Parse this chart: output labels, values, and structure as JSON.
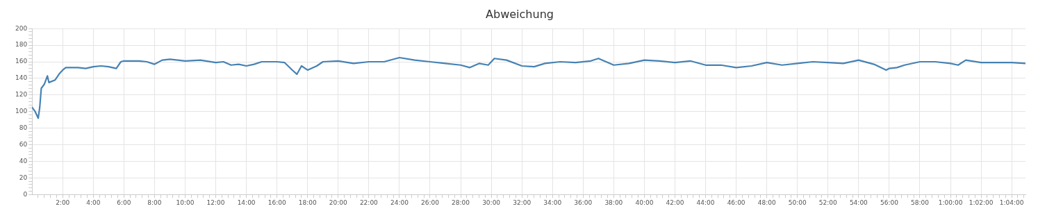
{
  "chart_data": {
    "type": "line",
    "title": "Abweichung",
    "grid": true,
    "legend": false,
    "marker": "none",
    "line_style": "solid",
    "xlim": [
      0,
      64.9
    ],
    "ylim": [
      0,
      200
    ],
    "xticks": [
      {
        "value": 0.4,
        "label": null
      },
      {
        "value": 0.8,
        "label": null
      },
      {
        "value": 1.2,
        "label": null
      },
      {
        "value": 1.6,
        "label": null
      },
      {
        "value": 2,
        "label": "2:00"
      },
      {
        "value": 2.4,
        "label": null
      },
      {
        "value": 2.8,
        "label": null
      },
      {
        "value": 3.2,
        "label": null
      },
      {
        "value": 3.6,
        "label": null
      },
      {
        "value": 4,
        "label": "4:00"
      },
      {
        "value": 4.4,
        "label": null
      },
      {
        "value": 4.8,
        "label": null
      },
      {
        "value": 5.2,
        "label": null
      },
      {
        "value": 5.6,
        "label": null
      },
      {
        "value": 6,
        "label": "6:00"
      },
      {
        "value": 6.4,
        "label": null
      },
      {
        "value": 6.8,
        "label": null
      },
      {
        "value": 7.2,
        "label": null
      },
      {
        "value": 7.6,
        "label": null
      },
      {
        "value": 8,
        "label": "8:00"
      },
      {
        "value": 8.4,
        "label": null
      },
      {
        "value": 8.8,
        "label": null
      },
      {
        "value": 9.2,
        "label": null
      },
      {
        "value": 9.6,
        "label": null
      },
      {
        "value": 10,
        "label": "10:00"
      },
      {
        "value": 10.4,
        "label": null
      },
      {
        "value": 10.8,
        "label": null
      },
      {
        "value": 11.2,
        "label": null
      },
      {
        "value": 11.6,
        "label": null
      },
      {
        "value": 12,
        "label": "12:00"
      },
      {
        "value": 12.4,
        "label": null
      },
      {
        "value": 12.8,
        "label": null
      },
      {
        "value": 13.2,
        "label": null
      },
      {
        "value": 13.6,
        "label": null
      },
      {
        "value": 14,
        "label": "14:00"
      },
      {
        "value": 14.4,
        "label": null
      },
      {
        "value": 14.8,
        "label": null
      },
      {
        "value": 15.2,
        "label": null
      },
      {
        "value": 15.6,
        "label": null
      },
      {
        "value": 16,
        "label": "16:00"
      },
      {
        "value": 16.4,
        "label": null
      },
      {
        "value": 16.8,
        "label": null
      },
      {
        "value": 17.2,
        "label": null
      },
      {
        "value": 17.6,
        "label": null
      },
      {
        "value": 18,
        "label": "18:00"
      },
      {
        "value": 18.4,
        "label": null
      },
      {
        "value": 18.8,
        "label": null
      },
      {
        "value": 19.2,
        "label": null
      },
      {
        "value": 19.6,
        "label": null
      },
      {
        "value": 20,
        "label": "20:00"
      },
      {
        "value": 20.4,
        "label": null
      },
      {
        "value": 20.8,
        "label": null
      },
      {
        "value": 21.2,
        "label": null
      },
      {
        "value": 21.6,
        "label": null
      },
      {
        "value": 22,
        "label": "22:00"
      },
      {
        "value": 22.4,
        "label": null
      },
      {
        "value": 22.8,
        "label": null
      },
      {
        "value": 23.2,
        "label": null
      },
      {
        "value": 23.6,
        "label": null
      },
      {
        "value": 24,
        "label": "24:00"
      },
      {
        "value": 24.4,
        "label": null
      },
      {
        "value": 24.8,
        "label": null
      },
      {
        "value": 25.2,
        "label": null
      },
      {
        "value": 25.6,
        "label": null
      },
      {
        "value": 26,
        "label": "26:00"
      },
      {
        "value": 26.4,
        "label": null
      },
      {
        "value": 26.8,
        "label": null
      },
      {
        "value": 27.2,
        "label": null
      },
      {
        "value": 27.6,
        "label": null
      },
      {
        "value": 28,
        "label": "28:00"
      },
      {
        "value": 28.4,
        "label": null
      },
      {
        "value": 28.8,
        "label": null
      },
      {
        "value": 29.2,
        "label": null
      },
      {
        "value": 29.6,
        "label": null
      },
      {
        "value": 30,
        "label": "30:00"
      },
      {
        "value": 30.4,
        "label": null
      },
      {
        "value": 30.8,
        "label": null
      },
      {
        "value": 31.2,
        "label": null
      },
      {
        "value": 31.6,
        "label": null
      },
      {
        "value": 32,
        "label": "32:00"
      },
      {
        "value": 32.4,
        "label": null
      },
      {
        "value": 32.8,
        "label": null
      },
      {
        "value": 33.2,
        "label": null
      },
      {
        "value": 33.6,
        "label": null
      },
      {
        "value": 34,
        "label": "34:00"
      },
      {
        "value": 34.4,
        "label": null
      },
      {
        "value": 34.8,
        "label": null
      },
      {
        "value": 35.2,
        "label": null
      },
      {
        "value": 35.6,
        "label": null
      },
      {
        "value": 36,
        "label": "36:00"
      },
      {
        "value": 36.4,
        "label": null
      },
      {
        "value": 36.8,
        "label": null
      },
      {
        "value": 37.2,
        "label": null
      },
      {
        "value": 37.6,
        "label": null
      },
      {
        "value": 38,
        "label": "38:00"
      },
      {
        "value": 38.4,
        "label": null
      },
      {
        "value": 38.8,
        "label": null
      },
      {
        "value": 39.2,
        "label": null
      },
      {
        "value": 39.6,
        "label": null
      },
      {
        "value": 40,
        "label": "40:00"
      },
      {
        "value": 40.4,
        "label": null
      },
      {
        "value": 40.8,
        "label": null
      },
      {
        "value": 41.2,
        "label": null
      },
      {
        "value": 41.6,
        "label": null
      },
      {
        "value": 42,
        "label": "42:00"
      },
      {
        "value": 42.4,
        "label": null
      },
      {
        "value": 42.8,
        "label": null
      },
      {
        "value": 43.2,
        "label": null
      },
      {
        "value": 43.6,
        "label": null
      },
      {
        "value": 44,
        "label": "44:00"
      },
      {
        "value": 44.4,
        "label": null
      },
      {
        "value": 44.8,
        "label": null
      },
      {
        "value": 45.2,
        "label": null
      },
      {
        "value": 45.6,
        "label": null
      },
      {
        "value": 46,
        "label": "46:00"
      },
      {
        "value": 46.4,
        "label": null
      },
      {
        "value": 46.8,
        "label": null
      },
      {
        "value": 47.2,
        "label": null
      },
      {
        "value": 47.6,
        "label": null
      },
      {
        "value": 48,
        "label": "48:00"
      },
      {
        "value": 48.4,
        "label": null
      },
      {
        "value": 48.8,
        "label": null
      },
      {
        "value": 49.2,
        "label": null
      },
      {
        "value": 49.6,
        "label": null
      },
      {
        "value": 50,
        "label": "50:00"
      },
      {
        "value": 50.4,
        "label": null
      },
      {
        "value": 50.8,
        "label": null
      },
      {
        "value": 51.2,
        "label": null
      },
      {
        "value": 51.6,
        "label": null
      },
      {
        "value": 52,
        "label": "52:00"
      },
      {
        "value": 52.4,
        "label": null
      },
      {
        "value": 52.8,
        "label": null
      },
      {
        "value": 53.2,
        "label": null
      },
      {
        "value": 53.6,
        "label": null
      },
      {
        "value": 54,
        "label": "54:00"
      },
      {
        "value": 54.4,
        "label": null
      },
      {
        "value": 54.8,
        "label": null
      },
      {
        "value": 55.2,
        "label": null
      },
      {
        "value": 55.6,
        "label": null
      },
      {
        "value": 56,
        "label": "56:00"
      },
      {
        "value": 56.4,
        "label": null
      },
      {
        "value": 56.8,
        "label": null
      },
      {
        "value": 57.2,
        "label": null
      },
      {
        "value": 57.6,
        "label": null
      },
      {
        "value": 58,
        "label": "58:00"
      },
      {
        "value": 58.4,
        "label": null
      },
      {
        "value": 58.8,
        "label": null
      },
      {
        "value": 59.2,
        "label": null
      },
      {
        "value": 59.6,
        "label": null
      },
      {
        "value": 60,
        "label": "1:00:00"
      },
      {
        "value": 60.4,
        "label": null
      },
      {
        "value": 60.8,
        "label": null
      },
      {
        "value": 61.2,
        "label": null
      },
      {
        "value": 61.6,
        "label": null
      },
      {
        "value": 62,
        "label": "1:02:00"
      },
      {
        "value": 62.4,
        "label": null
      },
      {
        "value": 62.8,
        "label": null
      },
      {
        "value": 63.2,
        "label": null
      },
      {
        "value": 63.6,
        "label": null
      },
      {
        "value": 64,
        "label": "1:04:00"
      },
      {
        "value": 64.4,
        "label": null
      },
      {
        "value": 64.8,
        "label": null
      }
    ],
    "yticks": [
      0,
      {
        "value": 4,
        "label": null
      },
      {
        "value": 8,
        "label": null
      },
      {
        "value": 12,
        "label": null
      },
      {
        "value": 16,
        "label": null
      },
      20,
      {
        "value": 24,
        "label": null
      },
      {
        "value": 28,
        "label": null
      },
      {
        "value": 32,
        "label": null
      },
      {
        "value": 36,
        "label": null
      },
      40,
      {
        "value": 44,
        "label": null
      },
      {
        "value": 48,
        "label": null
      },
      {
        "value": 52,
        "label": null
      },
      {
        "value": 56,
        "label": null
      },
      60,
      {
        "value": 64,
        "label": null
      },
      {
        "value": 68,
        "label": null
      },
      {
        "value": 72,
        "label": null
      },
      {
        "value": 76,
        "label": null
      },
      80,
      {
        "value": 84,
        "label": null
      },
      {
        "value": 88,
        "label": null
      },
      {
        "value": 92,
        "label": null
      },
      {
        "value": 96,
        "label": null
      },
      100,
      {
        "value": 104,
        "label": null
      },
      {
        "value": 108,
        "label": null
      },
      {
        "value": 112,
        "label": null
      },
      {
        "value": 116,
        "label": null
      },
      120,
      {
        "value": 124,
        "label": null
      },
      {
        "value": 128,
        "label": null
      },
      {
        "value": 132,
        "label": null
      },
      {
        "value": 136,
        "label": null
      },
      140,
      {
        "value": 144,
        "label": null
      },
      {
        "value": 148,
        "label": null
      },
      {
        "value": 152,
        "label": null
      },
      {
        "value": 156,
        "label": null
      },
      160,
      {
        "value": 164,
        "label": null
      },
      {
        "value": 168,
        "label": null
      },
      {
        "value": 172,
        "label": null
      },
      {
        "value": 176,
        "label": null
      },
      180,
      {
        "value": 184,
        "label": null
      },
      {
        "value": 188,
        "label": null
      },
      {
        "value": 192,
        "label": null
      },
      {
        "value": 196,
        "label": null
      },
      200
    ],
    "x": [
      0,
      0.2,
      0.4,
      0.5,
      0.6,
      0.8,
      1.0,
      1.1,
      1.5,
      1.8,
      2.0,
      2.2,
      3.0,
      3.5,
      4.0,
      4.5,
      5.0,
      5.5,
      5.8,
      6.0,
      7.0,
      7.5,
      8.0,
      8.5,
      9.0,
      10,
      11,
      12,
      12.5,
      13,
      13.5,
      14,
      14.5,
      15,
      16,
      16.5,
      17,
      17.3,
      17.6,
      18,
      18.6,
      19,
      20,
      21,
      22,
      23,
      24,
      25,
      26,
      27,
      28,
      28.6,
      29.2,
      29.8,
      30.2,
      31,
      32,
      32.8,
      33.5,
      34.5,
      35.5,
      36.5,
      37,
      38,
      39,
      40,
      41,
      42,
      43,
      44,
      45,
      46,
      47,
      48,
      49,
      50,
      51,
      52,
      53,
      54,
      55,
      55.8,
      56,
      56.5,
      57,
      58,
      59,
      60,
      60.5,
      61,
      62,
      63,
      64,
      64.9
    ],
    "series": [
      {
        "color": "#4682b4",
        "values": [
          105,
          100,
          92,
          105,
          128,
          133,
          143,
          135,
          138,
          146,
          150,
          153,
          153,
          152,
          154,
          155,
          154,
          152,
          160,
          161,
          161,
          160,
          157,
          162,
          163,
          161,
          162,
          159,
          160,
          156,
          157,
          155,
          157,
          160,
          160,
          159,
          150,
          145,
          155,
          150,
          155,
          160,
          161,
          158,
          160,
          160,
          165,
          162,
          160,
          158,
          156,
          153,
          158,
          156,
          164,
          162,
          155,
          154,
          158,
          160,
          159,
          161,
          164,
          156,
          158,
          162,
          161,
          159,
          161,
          156,
          156,
          153,
          155,
          159,
          156,
          158,
          160,
          159,
          158,
          162,
          157,
          150,
          152,
          153,
          156,
          160,
          160,
          158,
          156,
          162,
          159,
          159,
          159,
          158
        ]
      }
    ]
  }
}
